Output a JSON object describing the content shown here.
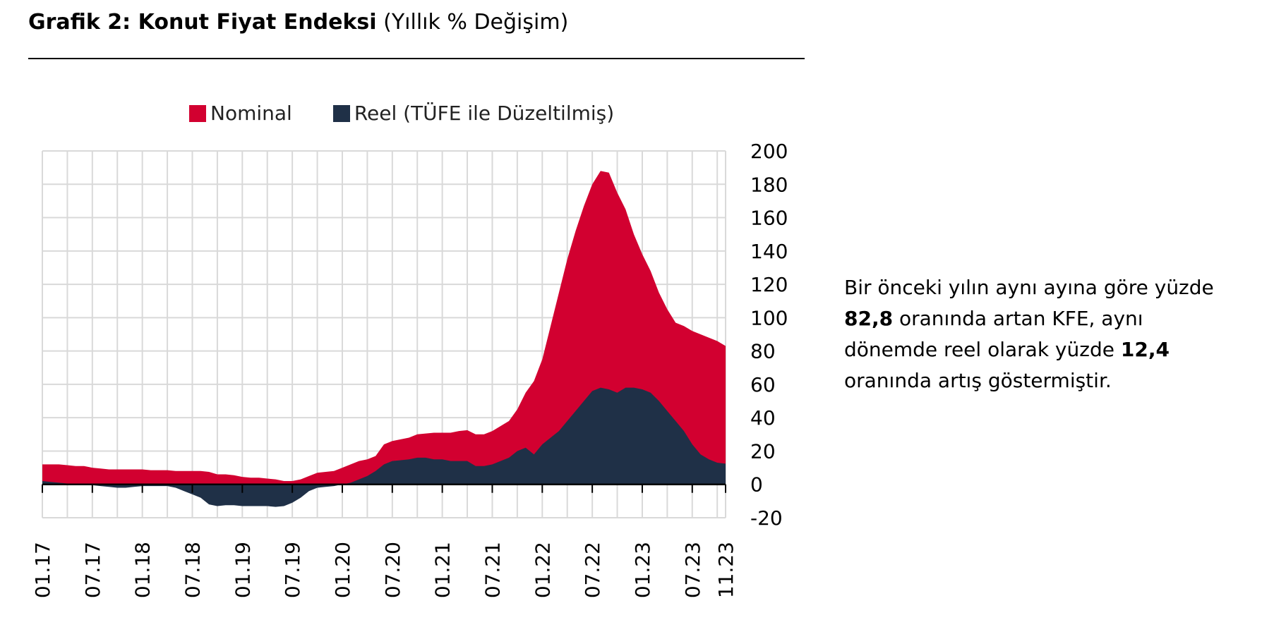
{
  "title": {
    "main": "Grafik 2: Konut Fiyat Endeksi",
    "sub": "(Yıllık % Değişim)"
  },
  "legend": {
    "nominal": "Nominal",
    "reel": "Reel (TÜFE ile Düzeltilmiş)"
  },
  "colors": {
    "nominal": "#d20030",
    "reel": "#1f3047",
    "grid": "#d9d9d9"
  },
  "note": {
    "line1": "Bir önceki yılın aynı ayına göre yüzde",
    "value1": "82,8",
    "line2": " oranında artan KFE, aynı",
    "line3": "dönemde reel olarak yüzde ",
    "value2": "12,4",
    "line4": "oranında artış göstermiştir."
  },
  "chart_data": {
    "type": "area",
    "x_ticks": [
      "01.17",
      "07.17",
      "01.18",
      "07.18",
      "01.19",
      "07.19",
      "01.20",
      "07.20",
      "01.21",
      "07.21",
      "01.22",
      "07.22",
      "01.23",
      "07.23",
      "11.23"
    ],
    "y_ticks": [
      "200",
      "180",
      "160",
      "140",
      "120",
      "100",
      "80",
      "60",
      "40",
      "20",
      "0",
      "-20"
    ],
    "ylim": [
      -20,
      200
    ],
    "grid": true,
    "legend_position": "top",
    "x": [
      "01.17",
      "02.17",
      "03.17",
      "04.17",
      "05.17",
      "06.17",
      "07.17",
      "08.17",
      "09.17",
      "10.17",
      "11.17",
      "12.17",
      "01.18",
      "02.18",
      "03.18",
      "04.18",
      "05.18",
      "06.18",
      "07.18",
      "08.18",
      "09.18",
      "10.18",
      "11.18",
      "12.18",
      "01.19",
      "02.19",
      "03.19",
      "04.19",
      "05.19",
      "06.19",
      "07.19",
      "08.19",
      "09.19",
      "10.19",
      "11.19",
      "12.19",
      "01.20",
      "02.20",
      "03.20",
      "04.20",
      "05.20",
      "06.20",
      "07.20",
      "08.20",
      "09.20",
      "10.20",
      "11.20",
      "12.20",
      "01.21",
      "02.21",
      "03.21",
      "04.21",
      "05.21",
      "06.21",
      "07.21",
      "08.21",
      "09.21",
      "10.21",
      "11.21",
      "12.21",
      "01.22",
      "02.22",
      "03.22",
      "04.22",
      "05.22",
      "06.22",
      "07.22",
      "08.22",
      "09.22",
      "10.22",
      "11.22",
      "12.22",
      "01.23",
      "02.23",
      "03.23",
      "04.23",
      "05.23",
      "06.23",
      "07.23",
      "08.23",
      "09.23",
      "10.23",
      "11.23"
    ],
    "series": [
      {
        "name": "Nominal",
        "values": [
          12,
          12,
          12,
          11.5,
          11,
          11,
          10,
          9.5,
          9,
          9,
          9,
          9,
          9,
          8.5,
          8.5,
          8.5,
          8,
          8,
          8,
          8,
          7.5,
          6,
          6,
          5.5,
          4.5,
          4,
          4,
          3.5,
          3,
          2,
          2,
          3,
          5,
          7,
          7.5,
          8,
          10,
          12,
          14,
          15,
          17,
          24,
          26,
          27,
          28,
          30,
          30.5,
          31,
          31,
          31,
          32,
          32.5,
          30,
          30,
          32,
          35,
          38,
          45,
          55,
          62,
          75,
          95,
          115,
          135,
          152,
          167,
          180,
          188,
          187,
          175,
          165,
          150,
          138,
          128,
          115,
          105,
          97,
          95,
          92,
          90,
          88,
          86,
          83
        ]
      },
      {
        "name": "Reel (TÜFE ile Düzeltilmiş)",
        "values": [
          2,
          1.5,
          1,
          0.5,
          0,
          0,
          -0.5,
          -1,
          -1.5,
          -2,
          -2,
          -1.5,
          -1,
          -1,
          -1,
          -1,
          -2,
          -4,
          -6,
          -8,
          -12,
          -13,
          -12.5,
          -12.5,
          -13,
          -13,
          -13,
          -13,
          -13.5,
          -13,
          -11,
          -8,
          -4,
          -2,
          -1.5,
          -1,
          0,
          1,
          3,
          5,
          8,
          12,
          14,
          14.5,
          15,
          16,
          16,
          15,
          15,
          14,
          14,
          14,
          11,
          11,
          12,
          14,
          16,
          20,
          22,
          18,
          24,
          28,
          32,
          38,
          44,
          50,
          56,
          58,
          57,
          55,
          58,
          58,
          57,
          55,
          50,
          44,
          38,
          32,
          24,
          18,
          15,
          13,
          12.4
        ]
      }
    ]
  }
}
